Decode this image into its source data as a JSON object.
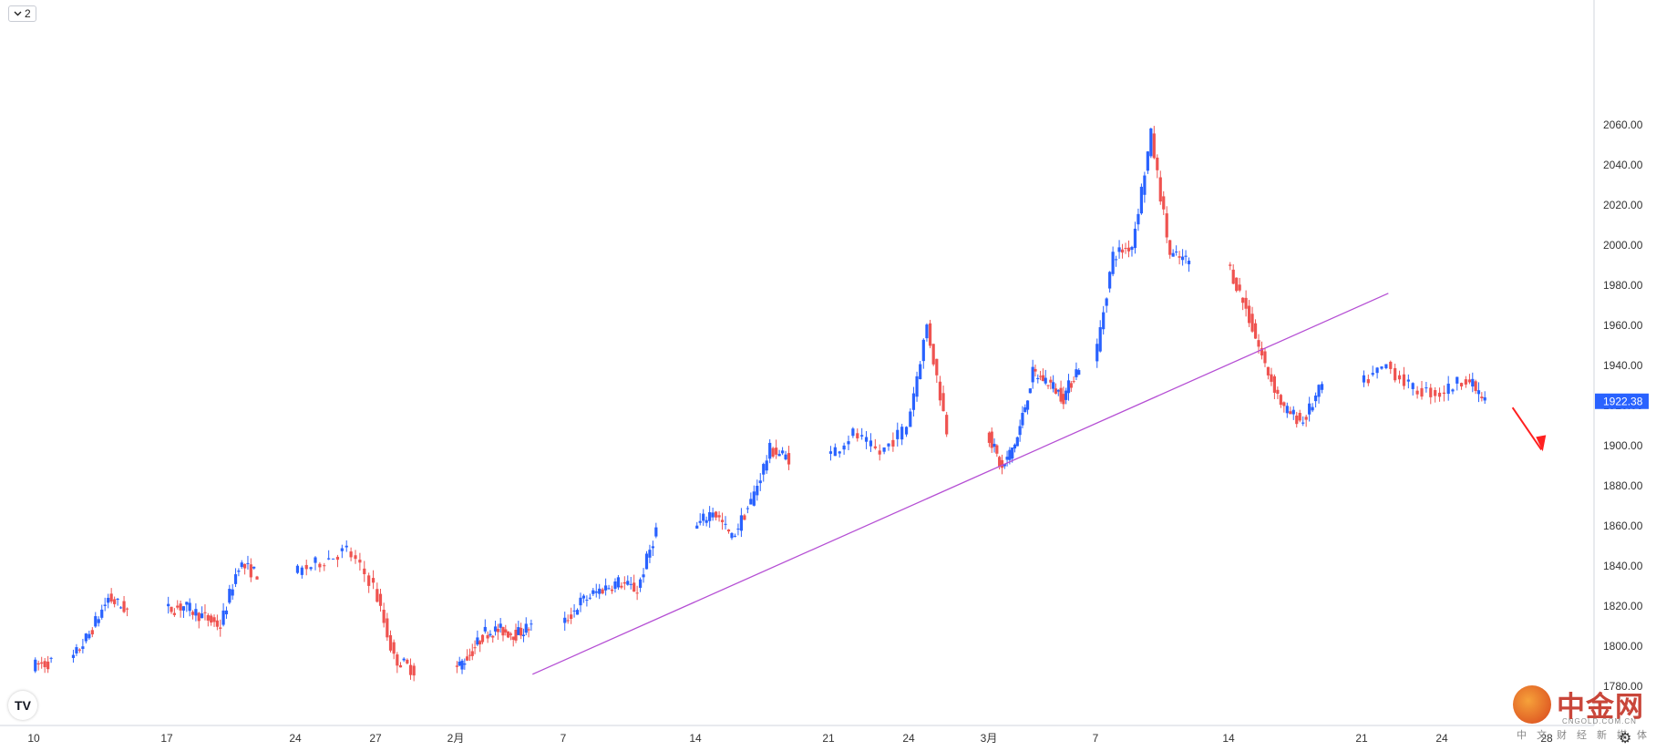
{
  "toolbar": {
    "collapse_badge": "2"
  },
  "logo": {
    "text": "TV"
  },
  "watermark": {
    "name": "中金网",
    "url": "CNGOLD.COM.CN",
    "subtitle": "中文财经新媒体"
  },
  "colors": {
    "up": "#2962ff",
    "down": "#ef5350",
    "trendline": "#b54fd4",
    "arrow": "#ff2020",
    "price_label_bg": "#2962ff"
  },
  "chart_data": {
    "type": "candlestick",
    "title": "",
    "ylabel": "",
    "ylim": [
      1770,
      2078
    ],
    "y_ticks": [
      1780,
      1800,
      1820,
      1840,
      1860,
      1880,
      1900,
      1920,
      1940,
      1960,
      1980,
      2000,
      2020,
      2040,
      2060
    ],
    "y_tick_labels": [
      "1780.00",
      "1800.00",
      "1820.00",
      "1840.00",
      "1860.00",
      "1880.00",
      "1900.00",
      "1920.00",
      "1940.00",
      "1960.00",
      "1980.00",
      "2000.00",
      "2020.00",
      "2040.00",
      "2060.00"
    ],
    "x_tick_labels": [
      "10",
      "17",
      "24",
      "27",
      "2月",
      "7",
      "14",
      "21",
      "24",
      "3月",
      "7",
      "14",
      "21",
      "24",
      "28"
    ],
    "last_price": "1922.38",
    "trend": [
      {
        "day": 10,
        "close": 1792
      },
      {
        "day": 12,
        "close": 1806
      },
      {
        "day": 13,
        "close": 1824
      },
      {
        "day": 14,
        "close": 1818
      },
      {
        "day": 17,
        "close": 1820
      },
      {
        "day": 18,
        "close": 1815
      },
      {
        "day": 19,
        "close": 1810
      },
      {
        "day": 20,
        "close": 1841
      },
      {
        "day": 21,
        "close": 1836
      },
      {
        "day": 24,
        "close": 1842
      },
      {
        "day": 25,
        "close": 1848
      },
      {
        "day": 26,
        "close": 1830
      },
      {
        "day": 27,
        "close": 1794
      },
      {
        "day": 28,
        "close": 1788
      },
      {
        "day": 31,
        "close": 1796
      },
      {
        "day": 32,
        "close": 1807
      },
      {
        "day": 33,
        "close": 1808
      },
      {
        "day": 34,
        "close": 1806
      },
      {
        "day": 35,
        "close": 1810
      },
      {
        "day": 38,
        "close": 1822
      },
      {
        "day": 39,
        "close": 1828
      },
      {
        "day": 40,
        "close": 1832
      },
      {
        "day": 41,
        "close": 1828
      },
      {
        "day": 42,
        "close": 1858
      },
      {
        "day": 45,
        "close": 1868
      },
      {
        "day": 46,
        "close": 1854
      },
      {
        "day": 47,
        "close": 1872
      },
      {
        "day": 48,
        "close": 1898
      },
      {
        "day": 49,
        "close": 1894
      },
      {
        "day": 52,
        "close": 1906
      },
      {
        "day": 53,
        "close": 1896
      },
      {
        "day": 54,
        "close": 1910
      },
      {
        "day": 55,
        "close": 1960
      },
      {
        "day": 56,
        "close": 1908
      },
      {
        "day": 59,
        "close": 1888
      },
      {
        "day": 60,
        "close": 1904
      },
      {
        "day": 61,
        "close": 1936
      },
      {
        "day": 62,
        "close": 1932
      },
      {
        "day": 63,
        "close": 1924
      },
      {
        "day": 64,
        "close": 1940
      },
      {
        "day": 66,
        "close": 1995
      },
      {
        "day": 67,
        "close": 2000
      },
      {
        "day": 68,
        "close": 2055
      },
      {
        "day": 69,
        "close": 1995
      },
      {
        "day": 70,
        "close": 1992
      },
      {
        "day": 73,
        "close": 1968
      },
      {
        "day": 74,
        "close": 1940
      },
      {
        "day": 75,
        "close": 1918
      },
      {
        "day": 76,
        "close": 1912
      },
      {
        "day": 77,
        "close": 1930
      },
      {
        "day": 80,
        "close": 1940
      },
      {
        "day": 81,
        "close": 1928
      },
      {
        "day": 82,
        "close": 1926
      },
      {
        "day": 83,
        "close": 1934
      },
      {
        "day": 84,
        "close": 1922
      }
    ],
    "trendline": [
      {
        "day": 36,
        "price": 1786
      },
      {
        "day": 81,
        "price": 1976
      }
    ]
  }
}
